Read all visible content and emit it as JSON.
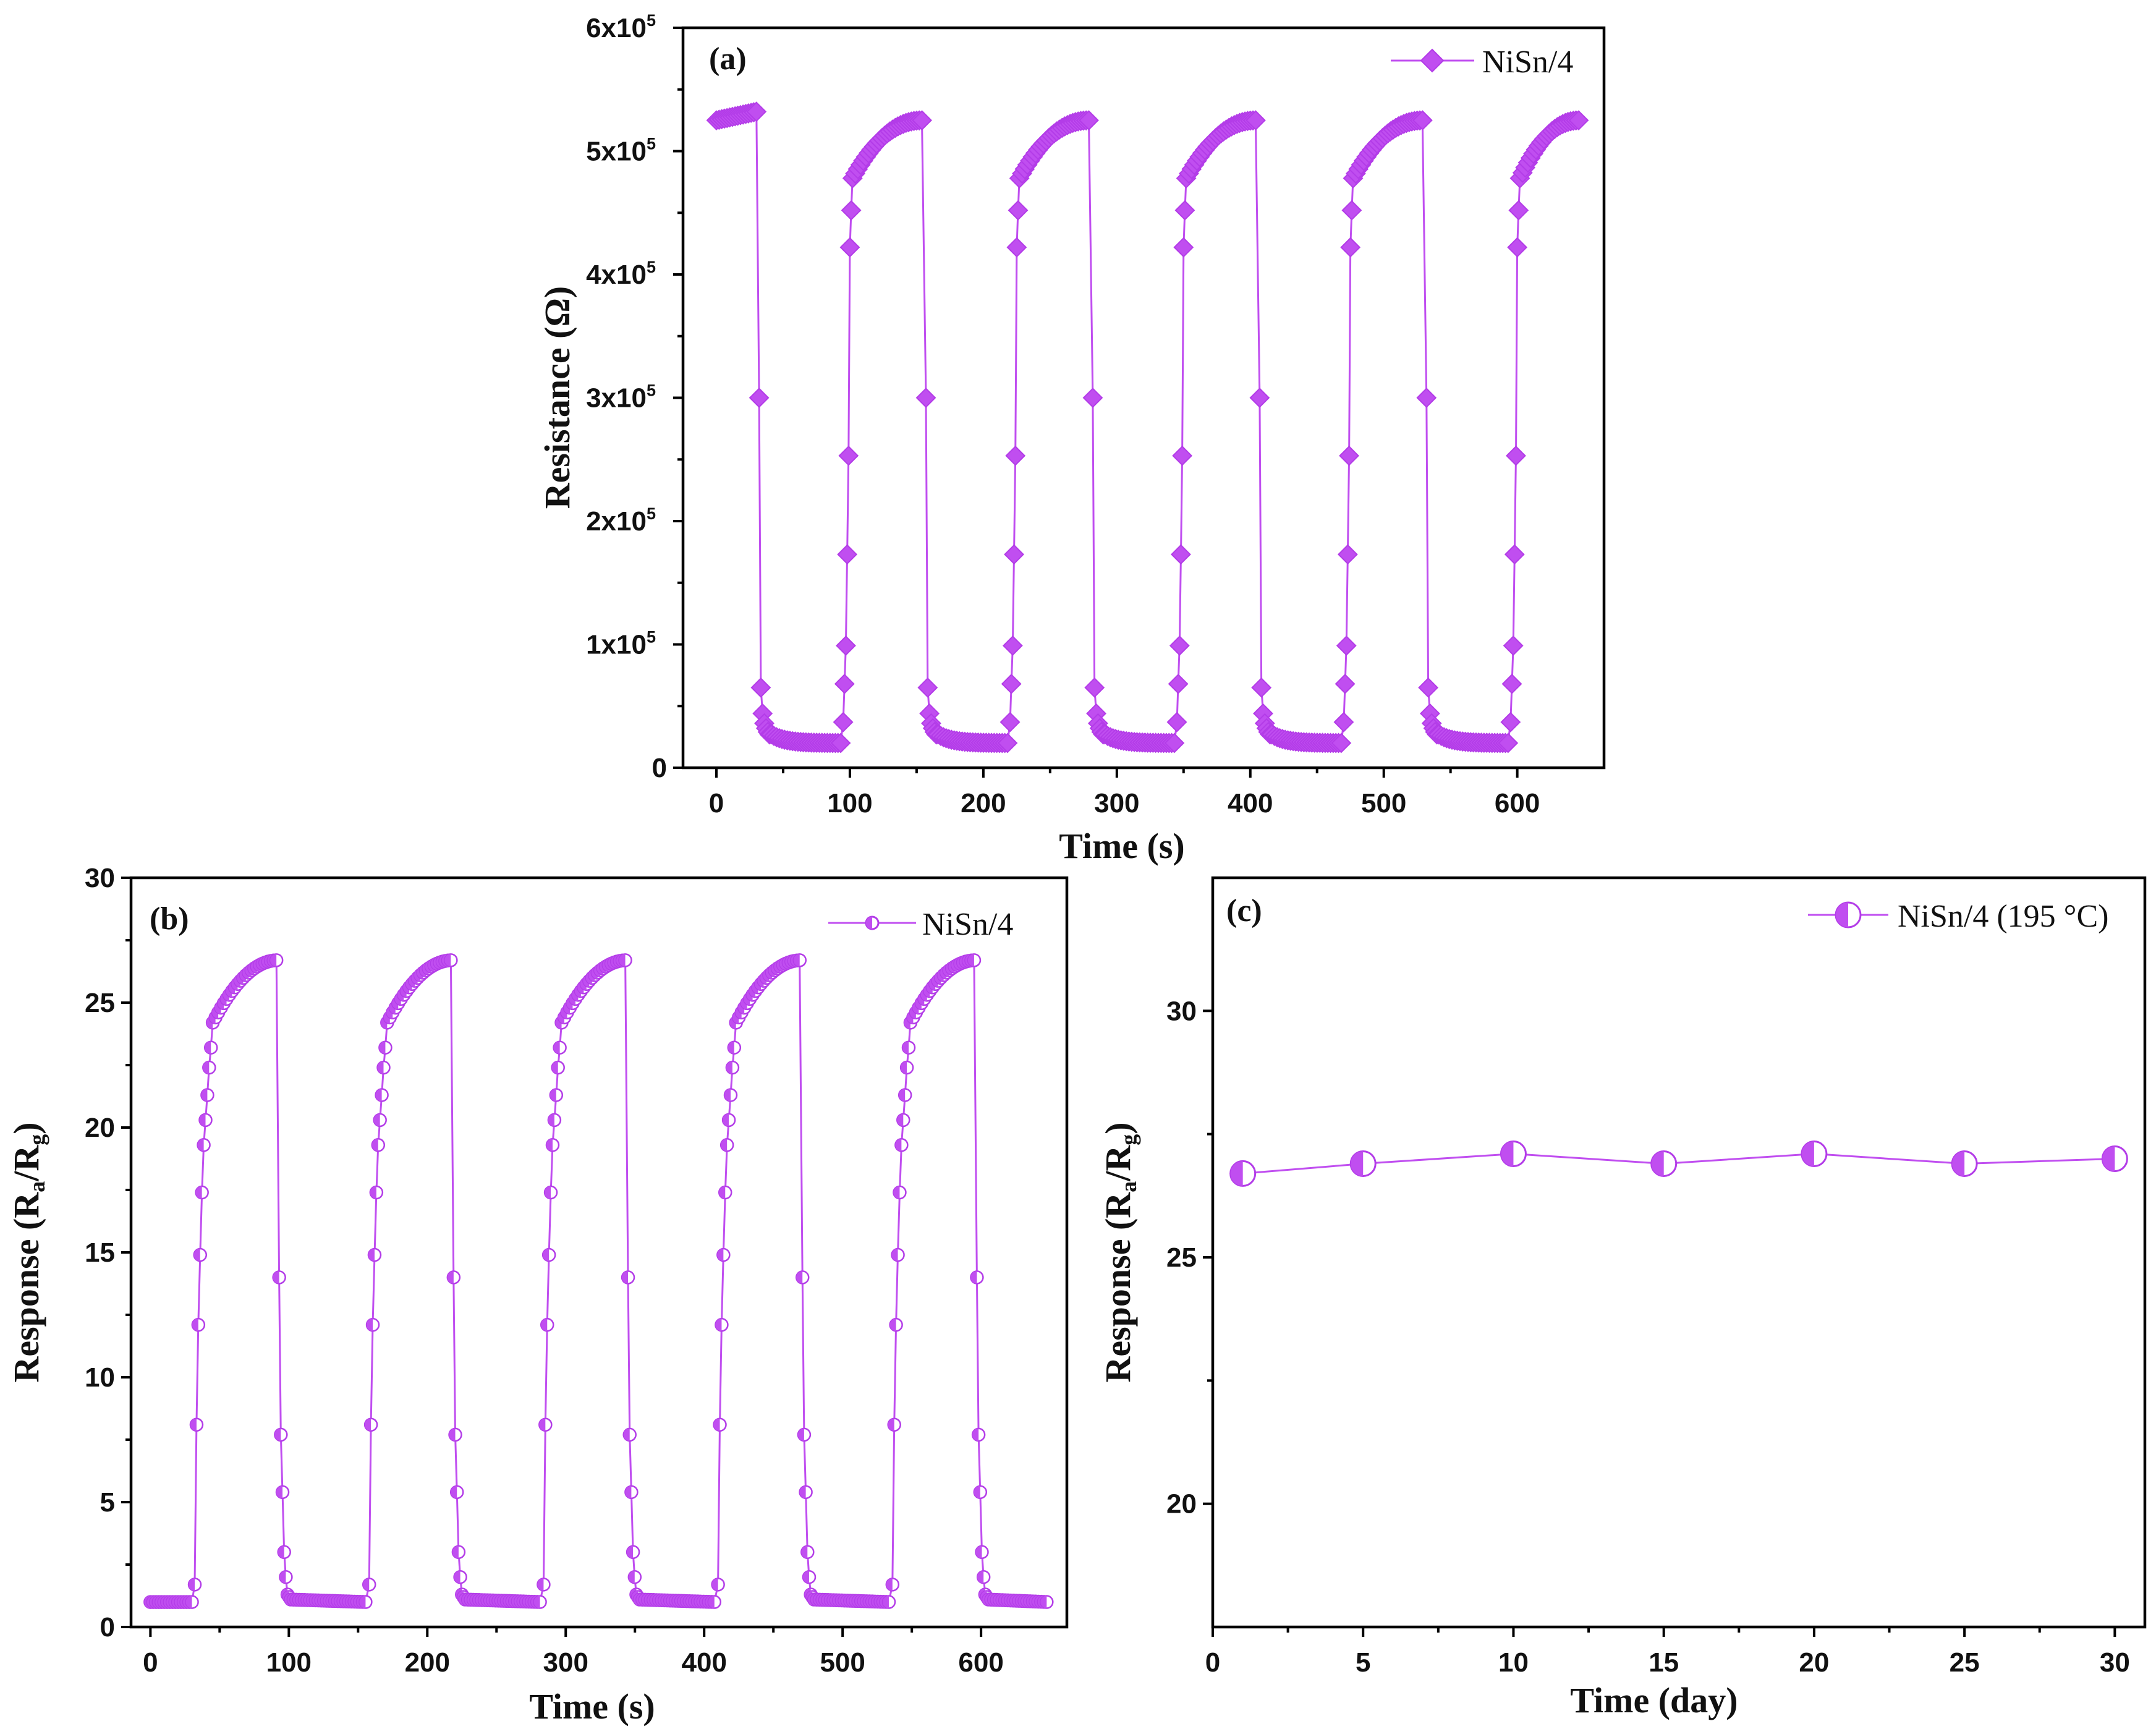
{
  "colors": {
    "series": "#c04ef0",
    "series_stroke": "#b33ce8",
    "axis": "#000000"
  },
  "chart_data": [
    {
      "id": "a",
      "type": "line",
      "panel_label": "(a)",
      "title": "",
      "xlabel": "Time (s)",
      "ylabel": "Resistance (Ω)",
      "xlim": [
        -25,
        665
      ],
      "ylim": [
        0,
        600000
      ],
      "xticks": [
        0,
        100,
        200,
        300,
        400,
        500,
        600
      ],
      "xtick_labels": [
        "0",
        "100",
        "200",
        "300",
        "400",
        "500",
        "600"
      ],
      "yticks": [
        0,
        100000,
        200000,
        300000,
        400000,
        500000,
        600000
      ],
      "ytick_labels": [
        "0",
        "1x10",
        "2x10",
        "3x10",
        "4x10",
        "5x10",
        "6x10"
      ],
      "ytick_sup": [
        "",
        "5",
        "5",
        "5",
        "5",
        "5",
        "5"
      ],
      "legend": "top-right",
      "marker": "diamond",
      "series": [
        {
          "name": "NiSn/4",
          "profile": "resistance",
          "cycle_start": 30,
          "cycle_period": 125,
          "exposure_duration": 64,
          "cycles": 5,
          "end_time": 647,
          "step_s": 2,
          "baseline_start": 525000,
          "baseline_first_end": 532000,
          "recover_start": 478000,
          "recover_end": 525000,
          "low_level": 20000,
          "drop_points": [
            300000,
            65000,
            44000,
            36000,
            32000,
            29000,
            27000
          ],
          "rise_points": [
            37000,
            68000,
            99000,
            173000,
            253000,
            422000,
            452000
          ]
        }
      ]
    },
    {
      "id": "b",
      "type": "line",
      "panel_label": "(b)",
      "title": "",
      "xlabel": "Time (s)",
      "ylabel_main": "Response (R",
      "ylabel_sub1": "a",
      "ylabel_mid": "/R",
      "ylabel_sub2": "g",
      "ylabel_end": ")",
      "xlim": [
        -14,
        662
      ],
      "ylim": [
        0,
        30
      ],
      "xticks": [
        0,
        100,
        200,
        300,
        400,
        500,
        600
      ],
      "xtick_labels": [
        "0",
        "100",
        "200",
        "300",
        "400",
        "500",
        "600"
      ],
      "yticks": [
        0,
        5,
        10,
        15,
        20,
        25,
        30
      ],
      "ytick_labels": [
        "0",
        "5",
        "10",
        "15",
        "20",
        "25",
        "30"
      ],
      "legend": "top-right",
      "marker": "half-circle",
      "series": [
        {
          "name": "NiSn/4",
          "profile": "response",
          "cycle_start": 30,
          "cycle_period": 126,
          "exposure_duration": 62,
          "cycles": 5,
          "end_time": 648,
          "step_s": 2,
          "base": 1.0,
          "high_start": 24.2,
          "high_end": 26.7,
          "rise_points": [
            1.7,
            8.1,
            12.1,
            14.9,
            17.4,
            19.3,
            20.3,
            21.3,
            22.4,
            23.2
          ],
          "fall_points": [
            14.0,
            7.7,
            5.4,
            3.0,
            2.0,
            1.3,
            1.2
          ]
        }
      ]
    },
    {
      "id": "c",
      "type": "line",
      "panel_label": "(c)",
      "title": "",
      "xlabel": "Time (day)",
      "ylabel_main": "Response (R",
      "ylabel_sub1": "a",
      "ylabel_mid": "/R",
      "ylabel_sub2": "g",
      "ylabel_end": ")",
      "xlim": [
        0,
        31
      ],
      "ylim": [
        17.5,
        32.7
      ],
      "xticks": [
        0,
        5,
        10,
        15,
        20,
        25,
        30
      ],
      "xtick_labels": [
        "0",
        "5",
        "10",
        "15",
        "20",
        "25",
        "30"
      ],
      "yticks": [
        20,
        25,
        30
      ],
      "ytick_labels": [
        "20",
        "25",
        "30"
      ],
      "legend": "top-right",
      "marker": "half-circle",
      "series": [
        {
          "name": "NiSn/4 (195 °C)",
          "x": [
            1,
            5,
            10,
            15,
            20,
            25,
            30
          ],
          "y": [
            26.7,
            26.9,
            27.1,
            26.9,
            27.1,
            26.9,
            27.0
          ]
        }
      ]
    }
  ]
}
